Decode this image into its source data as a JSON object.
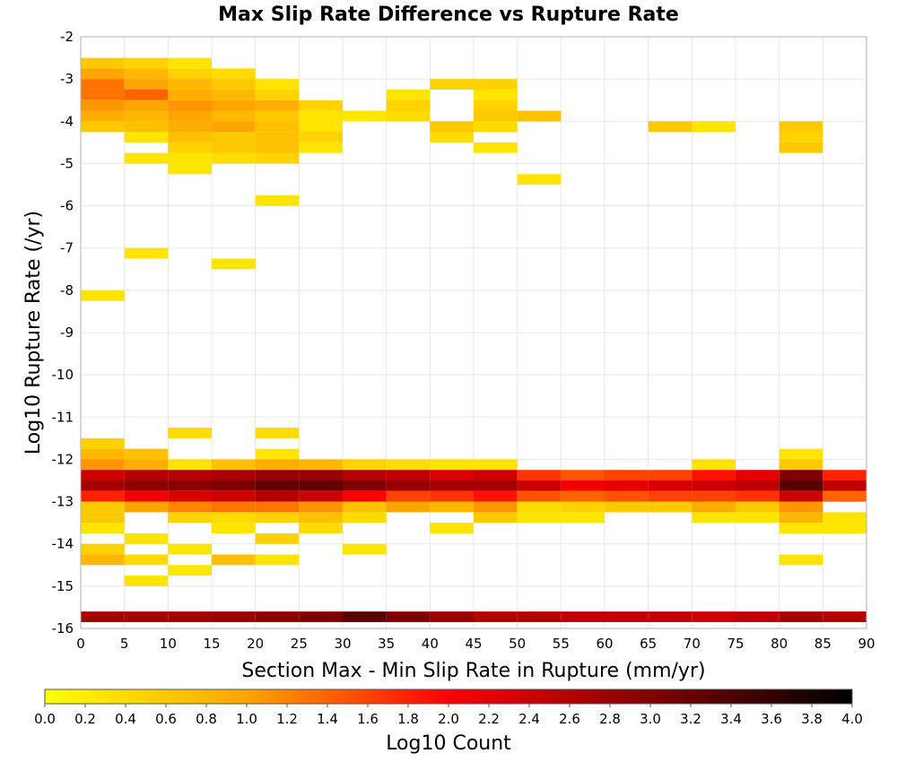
{
  "chart_data": {
    "type": "heatmap",
    "title": "Max Slip Rate Difference vs Rupture Rate",
    "xlabel": "Section Max - Min Slip Rate in Rupture (mm/yr)",
    "ylabel": "Log10 Rupture Rate (/yr)",
    "xlim": [
      0,
      90
    ],
    "ylim": [
      -16,
      -2
    ],
    "x_ticks": [
      "0",
      "5",
      "10",
      "15",
      "20",
      "25",
      "30",
      "35",
      "40",
      "45",
      "50",
      "55",
      "60",
      "65",
      "70",
      "75",
      "80",
      "85",
      "90"
    ],
    "y_ticks": [
      "-2",
      "-3",
      "-4",
      "-5",
      "-6",
      "-7",
      "-8",
      "-9",
      "-10",
      "-11",
      "-12",
      "-13",
      "-14",
      "-15",
      "-16"
    ],
    "x_bin_width": 5,
    "y_bin_height": 0.25,
    "grid": true,
    "colorbar": {
      "label": "Log10 Count",
      "min": 0,
      "max": 4,
      "ticks": [
        "0.0",
        "0.2",
        "0.4",
        "0.6",
        "0.8",
        "1.0",
        "1.2",
        "1.4",
        "1.6",
        "1.8",
        "2.0",
        "2.2",
        "2.4",
        "2.6",
        "2.8",
        "3.0",
        "3.2",
        "3.4",
        "3.6",
        "3.8",
        "4.0"
      ],
      "colors": [
        "#ffff00",
        "#ffa500",
        "#ff0000",
        "#800000",
        "#000000"
      ]
    },
    "cells": [
      {
        "x": 0,
        "y": -2.75,
        "v": 0.6
      },
      {
        "x": 5,
        "y": -2.75,
        "v": 0.5
      },
      {
        "x": 10,
        "y": -2.75,
        "v": 0.3
      },
      {
        "x": 0,
        "y": -3.0,
        "v": 1.0
      },
      {
        "x": 5,
        "y": -3.0,
        "v": 0.8
      },
      {
        "x": 10,
        "y": -3.0,
        "v": 0.5
      },
      {
        "x": 15,
        "y": -3.0,
        "v": 0.4
      },
      {
        "x": 0,
        "y": -3.25,
        "v": 1.3
      },
      {
        "x": 5,
        "y": -3.25,
        "v": 1.0
      },
      {
        "x": 10,
        "y": -3.25,
        "v": 0.8
      },
      {
        "x": 15,
        "y": -3.25,
        "v": 0.6
      },
      {
        "x": 20,
        "y": -3.25,
        "v": 0.3
      },
      {
        "x": 40,
        "y": -3.25,
        "v": 0.5
      },
      {
        "x": 45,
        "y": -3.25,
        "v": 0.5
      },
      {
        "x": 0,
        "y": -3.5,
        "v": 1.3
      },
      {
        "x": 5,
        "y": -3.5,
        "v": 1.4
      },
      {
        "x": 10,
        "y": -3.5,
        "v": 0.9
      },
      {
        "x": 15,
        "y": -3.5,
        "v": 0.8
      },
      {
        "x": 20,
        "y": -3.5,
        "v": 0.5
      },
      {
        "x": 35,
        "y": -3.5,
        "v": 0.3
      },
      {
        "x": 45,
        "y": -3.5,
        "v": 0.3
      },
      {
        "x": 0,
        "y": -3.75,
        "v": 1.1
      },
      {
        "x": 5,
        "y": -3.75,
        "v": 1.0
      },
      {
        "x": 10,
        "y": -3.75,
        "v": 1.1
      },
      {
        "x": 15,
        "y": -3.75,
        "v": 1.0
      },
      {
        "x": 20,
        "y": -3.75,
        "v": 0.9
      },
      {
        "x": 25,
        "y": -3.75,
        "v": 0.5
      },
      {
        "x": 35,
        "y": -3.75,
        "v": 0.5
      },
      {
        "x": 45,
        "y": -3.75,
        "v": 0.5
      },
      {
        "x": 0,
        "y": -4.0,
        "v": 0.9
      },
      {
        "x": 5,
        "y": -4.0,
        "v": 0.8
      },
      {
        "x": 10,
        "y": -4.0,
        "v": 1.0
      },
      {
        "x": 15,
        "y": -4.0,
        "v": 0.8
      },
      {
        "x": 20,
        "y": -4.0,
        "v": 0.6
      },
      {
        "x": 25,
        "y": -4.0,
        "v": 0.3
      },
      {
        "x": 30,
        "y": -4.0,
        "v": 0.3
      },
      {
        "x": 35,
        "y": -4.0,
        "v": 0.4
      },
      {
        "x": 45,
        "y": -4.0,
        "v": 0.6
      },
      {
        "x": 50,
        "y": -4.0,
        "v": 0.7
      },
      {
        "x": 0,
        "y": -4.25,
        "v": 0.6
      },
      {
        "x": 5,
        "y": -4.25,
        "v": 0.7
      },
      {
        "x": 10,
        "y": -4.25,
        "v": 0.9
      },
      {
        "x": 15,
        "y": -4.25,
        "v": 1.0
      },
      {
        "x": 20,
        "y": -4.25,
        "v": 0.7
      },
      {
        "x": 25,
        "y": -4.25,
        "v": 0.3
      },
      {
        "x": 40,
        "y": -4.25,
        "v": 0.6
      },
      {
        "x": 45,
        "y": -4.25,
        "v": 0.4
      },
      {
        "x": 65,
        "y": -4.25,
        "v": 0.6
      },
      {
        "x": 70,
        "y": -4.25,
        "v": 0.3
      },
      {
        "x": 80,
        "y": -4.25,
        "v": 0.6
      },
      {
        "x": 5,
        "y": -4.5,
        "v": 0.3
      },
      {
        "x": 10,
        "y": -4.5,
        "v": 0.7
      },
      {
        "x": 15,
        "y": -4.5,
        "v": 0.6
      },
      {
        "x": 20,
        "y": -4.5,
        "v": 0.7
      },
      {
        "x": 25,
        "y": -4.5,
        "v": 0.5
      },
      {
        "x": 40,
        "y": -4.5,
        "v": 0.4
      },
      {
        "x": 80,
        "y": -4.5,
        "v": 0.5
      },
      {
        "x": 10,
        "y": -4.75,
        "v": 0.5
      },
      {
        "x": 15,
        "y": -4.75,
        "v": 0.6
      },
      {
        "x": 20,
        "y": -4.75,
        "v": 0.7
      },
      {
        "x": 25,
        "y": -4.75,
        "v": 0.3
      },
      {
        "x": 45,
        "y": -4.75,
        "v": 0.3
      },
      {
        "x": 80,
        "y": -4.75,
        "v": 0.6
      },
      {
        "x": 5,
        "y": -5.0,
        "v": 0.3
      },
      {
        "x": 10,
        "y": -5.0,
        "v": 0.3
      },
      {
        "x": 15,
        "y": -5.0,
        "v": 0.4
      },
      {
        "x": 20,
        "y": -5.0,
        "v": 0.5
      },
      {
        "x": 10,
        "y": -5.25,
        "v": 0.3
      },
      {
        "x": 50,
        "y": -5.5,
        "v": 0.3
      },
      {
        "x": 20,
        "y": -6.0,
        "v": 0.3
      },
      {
        "x": 5,
        "y": -7.25,
        "v": 0.3
      },
      {
        "x": 15,
        "y": -7.5,
        "v": 0.3
      },
      {
        "x": 0,
        "y": -8.25,
        "v": 0.3
      },
      {
        "x": 10,
        "y": -11.5,
        "v": 0.4
      },
      {
        "x": 20,
        "y": -11.5,
        "v": 0.4
      },
      {
        "x": 0,
        "y": -11.75,
        "v": 0.5
      },
      {
        "x": 0,
        "y": -12.0,
        "v": 0.8
      },
      {
        "x": 5,
        "y": -12.0,
        "v": 0.7
      },
      {
        "x": 20,
        "y": -12.0,
        "v": 0.3
      },
      {
        "x": 80,
        "y": -12.0,
        "v": 0.3
      },
      {
        "x": 0,
        "y": -12.25,
        "v": 1.1
      },
      {
        "x": 5,
        "y": -12.25,
        "v": 0.9
      },
      {
        "x": 10,
        "y": -12.25,
        "v": 0.3
      },
      {
        "x": 15,
        "y": -12.25,
        "v": 0.7
      },
      {
        "x": 20,
        "y": -12.25,
        "v": 0.9
      },
      {
        "x": 25,
        "y": -12.25,
        "v": 0.8
      },
      {
        "x": 30,
        "y": -12.25,
        "v": 0.5
      },
      {
        "x": 35,
        "y": -12.25,
        "v": 0.4
      },
      {
        "x": 40,
        "y": -12.25,
        "v": 0.3
      },
      {
        "x": 45,
        "y": -12.25,
        "v": 0.3
      },
      {
        "x": 70,
        "y": -12.25,
        "v": 0.3
      },
      {
        "x": 80,
        "y": -12.25,
        "v": 0.6
      },
      {
        "x": 0,
        "y": -12.5,
        "v": 2.4
      },
      {
        "x": 5,
        "y": -12.5,
        "v": 2.6
      },
      {
        "x": 10,
        "y": -12.5,
        "v": 2.6
      },
      {
        "x": 15,
        "y": -12.5,
        "v": 2.7
      },
      {
        "x": 20,
        "y": -12.5,
        "v": 2.8
      },
      {
        "x": 25,
        "y": -12.5,
        "v": 2.8
      },
      {
        "x": 30,
        "y": -12.5,
        "v": 2.6
      },
      {
        "x": 35,
        "y": -12.5,
        "v": 2.5
      },
      {
        "x": 40,
        "y": -12.5,
        "v": 2.3
      },
      {
        "x": 45,
        "y": -12.5,
        "v": 2.4
      },
      {
        "x": 50,
        "y": -12.5,
        "v": 1.7
      },
      {
        "x": 55,
        "y": -12.5,
        "v": 1.5
      },
      {
        "x": 60,
        "y": -12.5,
        "v": 1.6
      },
      {
        "x": 65,
        "y": -12.5,
        "v": 1.6
      },
      {
        "x": 70,
        "y": -12.5,
        "v": 1.9
      },
      {
        "x": 75,
        "y": -12.5,
        "v": 2.2
      },
      {
        "x": 80,
        "y": -12.5,
        "v": 3.0
      },
      {
        "x": 85,
        "y": -12.5,
        "v": 1.8
      },
      {
        "x": 0,
        "y": -12.75,
        "v": 2.7
      },
      {
        "x": 5,
        "y": -12.75,
        "v": 2.9
      },
      {
        "x": 10,
        "y": -12.75,
        "v": 2.9
      },
      {
        "x": 15,
        "y": -12.75,
        "v": 3.0
      },
      {
        "x": 20,
        "y": -12.75,
        "v": 3.2
      },
      {
        "x": 25,
        "y": -12.75,
        "v": 3.2
      },
      {
        "x": 30,
        "y": -12.75,
        "v": 3.0
      },
      {
        "x": 35,
        "y": -12.75,
        "v": 2.8
      },
      {
        "x": 40,
        "y": -12.75,
        "v": 2.7
      },
      {
        "x": 45,
        "y": -12.75,
        "v": 2.7
      },
      {
        "x": 50,
        "y": -12.75,
        "v": 2.4
      },
      {
        "x": 55,
        "y": -12.75,
        "v": 2.1
      },
      {
        "x": 60,
        "y": -12.75,
        "v": 2.2
      },
      {
        "x": 65,
        "y": -12.75,
        "v": 2.3
      },
      {
        "x": 70,
        "y": -12.75,
        "v": 2.4
      },
      {
        "x": 75,
        "y": -12.75,
        "v": 2.5
      },
      {
        "x": 80,
        "y": -12.75,
        "v": 3.3
      },
      {
        "x": 85,
        "y": -12.75,
        "v": 2.5
      },
      {
        "x": 0,
        "y": -13.0,
        "v": 1.8
      },
      {
        "x": 5,
        "y": -13.0,
        "v": 2.1
      },
      {
        "x": 10,
        "y": -13.0,
        "v": 2.3
      },
      {
        "x": 15,
        "y": -13.0,
        "v": 2.4
      },
      {
        "x": 20,
        "y": -13.0,
        "v": 2.6
      },
      {
        "x": 25,
        "y": -13.0,
        "v": 2.4
      },
      {
        "x": 30,
        "y": -13.0,
        "v": 2.0
      },
      {
        "x": 35,
        "y": -13.0,
        "v": 1.6
      },
      {
        "x": 40,
        "y": -13.0,
        "v": 1.7
      },
      {
        "x": 45,
        "y": -13.0,
        "v": 1.9
      },
      {
        "x": 50,
        "y": -13.0,
        "v": 1.5
      },
      {
        "x": 55,
        "y": -13.0,
        "v": 1.4
      },
      {
        "x": 60,
        "y": -13.0,
        "v": 1.5
      },
      {
        "x": 65,
        "y": -13.0,
        "v": 1.6
      },
      {
        "x": 70,
        "y": -13.0,
        "v": 1.6
      },
      {
        "x": 75,
        "y": -13.0,
        "v": 1.7
      },
      {
        "x": 80,
        "y": -13.0,
        "v": 2.4
      },
      {
        "x": 85,
        "y": -13.0,
        "v": 1.4
      },
      {
        "x": 0,
        "y": -13.25,
        "v": 0.6
      },
      {
        "x": 5,
        "y": -13.25,
        "v": 1.0
      },
      {
        "x": 10,
        "y": -13.25,
        "v": 1.2
      },
      {
        "x": 15,
        "y": -13.25,
        "v": 1.3
      },
      {
        "x": 20,
        "y": -13.25,
        "v": 1.3
      },
      {
        "x": 25,
        "y": -13.25,
        "v": 1.1
      },
      {
        "x": 30,
        "y": -13.25,
        "v": 0.7
      },
      {
        "x": 35,
        "y": -13.25,
        "v": 1.0
      },
      {
        "x": 40,
        "y": -13.25,
        "v": 0.8
      },
      {
        "x": 45,
        "y": -13.25,
        "v": 1.1
      },
      {
        "x": 50,
        "y": -13.25,
        "v": 0.4
      },
      {
        "x": 55,
        "y": -13.25,
        "v": 0.5
      },
      {
        "x": 60,
        "y": -13.25,
        "v": 0.6
      },
      {
        "x": 65,
        "y": -13.25,
        "v": 0.6
      },
      {
        "x": 70,
        "y": -13.25,
        "v": 0.9
      },
      {
        "x": 75,
        "y": -13.25,
        "v": 0.6
      },
      {
        "x": 80,
        "y": -13.25,
        "v": 1.1
      },
      {
        "x": 0,
        "y": -13.5,
        "v": 0.6
      },
      {
        "x": 10,
        "y": -13.5,
        "v": 0.5
      },
      {
        "x": 15,
        "y": -13.5,
        "v": 0.4
      },
      {
        "x": 20,
        "y": -13.5,
        "v": 0.5
      },
      {
        "x": 25,
        "y": -13.5,
        "v": 0.7
      },
      {
        "x": 30,
        "y": -13.5,
        "v": 0.4
      },
      {
        "x": 45,
        "y": -13.5,
        "v": 0.6
      },
      {
        "x": 50,
        "y": -13.5,
        "v": 0.3
      },
      {
        "x": 55,
        "y": -13.5,
        "v": 0.3
      },
      {
        "x": 70,
        "y": -13.5,
        "v": 0.3
      },
      {
        "x": 75,
        "y": -13.5,
        "v": 0.3
      },
      {
        "x": 80,
        "y": -13.5,
        "v": 0.8
      },
      {
        "x": 85,
        "y": -13.5,
        "v": 0.3
      },
      {
        "x": 0,
        "y": -13.75,
        "v": 0.3
      },
      {
        "x": 15,
        "y": -13.75,
        "v": 0.3
      },
      {
        "x": 25,
        "y": -13.75,
        "v": 0.4
      },
      {
        "x": 40,
        "y": -13.75,
        "v": 0.3
      },
      {
        "x": 80,
        "y": -13.75,
        "v": 0.3
      },
      {
        "x": 85,
        "y": -13.75,
        "v": 0.3
      },
      {
        "x": 5,
        "y": -14.0,
        "v": 0.3
      },
      {
        "x": 20,
        "y": -14.0,
        "v": 0.5
      },
      {
        "x": 0,
        "y": -14.25,
        "v": 0.5
      },
      {
        "x": 10,
        "y": -14.25,
        "v": 0.3
      },
      {
        "x": 30,
        "y": -14.25,
        "v": 0.3
      },
      {
        "x": 0,
        "y": -14.5,
        "v": 0.8
      },
      {
        "x": 5,
        "y": -14.5,
        "v": 0.4
      },
      {
        "x": 15,
        "y": -14.5,
        "v": 0.7
      },
      {
        "x": 20,
        "y": -14.5,
        "v": 0.3
      },
      {
        "x": 80,
        "y": -14.5,
        "v": 0.3
      },
      {
        "x": 10,
        "y": -14.75,
        "v": 0.3
      },
      {
        "x": 5,
        "y": -15.0,
        "v": 0.3
      },
      {
        "x": 0,
        "y": -15.85,
        "v": 2.7
      },
      {
        "x": 5,
        "y": -15.85,
        "v": 2.7
      },
      {
        "x": 10,
        "y": -15.85,
        "v": 2.7
      },
      {
        "x": 15,
        "y": -15.85,
        "v": 2.8
      },
      {
        "x": 20,
        "y": -15.85,
        "v": 2.9
      },
      {
        "x": 25,
        "y": -15.85,
        "v": 3.0
      },
      {
        "x": 30,
        "y": -15.85,
        "v": 3.3
      },
      {
        "x": 35,
        "y": -15.85,
        "v": 3.0
      },
      {
        "x": 40,
        "y": -15.85,
        "v": 2.8
      },
      {
        "x": 45,
        "y": -15.85,
        "v": 2.6
      },
      {
        "x": 50,
        "y": -15.85,
        "v": 2.6
      },
      {
        "x": 55,
        "y": -15.85,
        "v": 2.5
      },
      {
        "x": 60,
        "y": -15.85,
        "v": 2.5
      },
      {
        "x": 65,
        "y": -15.85,
        "v": 2.5
      },
      {
        "x": 70,
        "y": -15.85,
        "v": 2.4
      },
      {
        "x": 75,
        "y": -15.85,
        "v": 2.5
      },
      {
        "x": 80,
        "y": -15.85,
        "v": 2.7
      },
      {
        "x": 85,
        "y": -15.85,
        "v": 2.6
      }
    ]
  }
}
